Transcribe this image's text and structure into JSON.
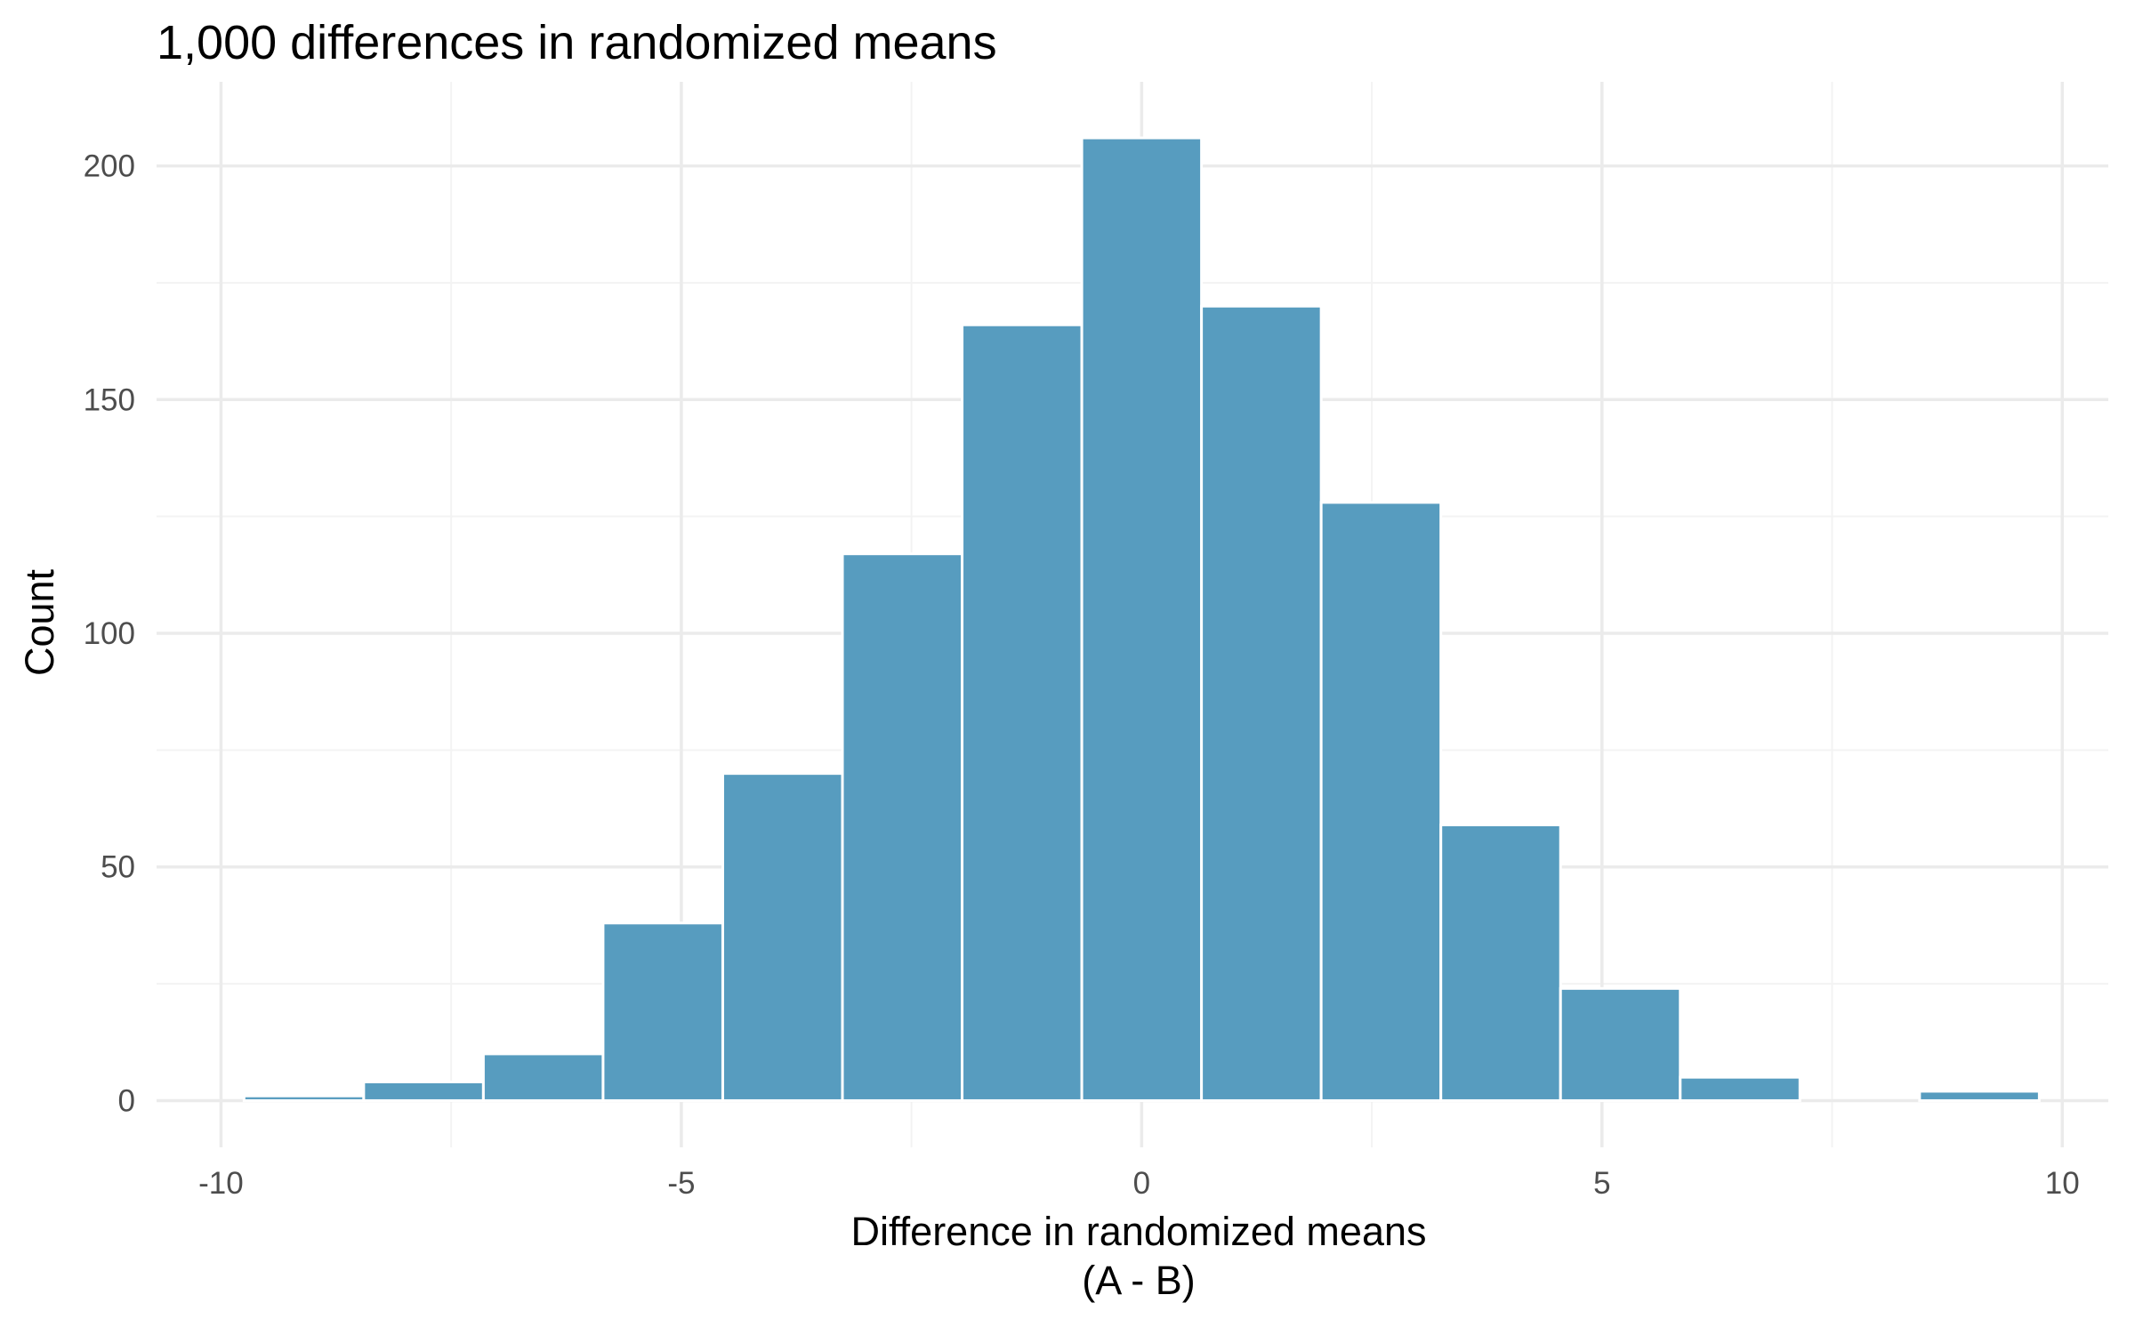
{
  "chart_data": {
    "type": "bar",
    "title": "1,000 differences in randomized means",
    "xlabel": "Difference in randomized means",
    "xlabel_line2": "(A - B)",
    "ylabel": "Count",
    "x_ticks": [
      -10,
      -5,
      0,
      5,
      10
    ],
    "x_tick_labels": [
      "-10",
      "-5",
      "0",
      "5",
      "10"
    ],
    "y_ticks": [
      0,
      50,
      100,
      150,
      200
    ],
    "y_tick_labels": [
      "0",
      "50",
      "100",
      "150",
      "200"
    ],
    "xlim": [
      -10.7,
      10.5
    ],
    "ylim": [
      -10,
      218
    ],
    "grid": true,
    "legend": "none",
    "bin_width": 1.3,
    "bins": [
      {
        "x_start": -9.75,
        "x_end": -8.45,
        "count": 1
      },
      {
        "x_start": -8.45,
        "x_end": -7.15,
        "count": 4
      },
      {
        "x_start": -7.15,
        "x_end": -5.85,
        "count": 10
      },
      {
        "x_start": -5.85,
        "x_end": -4.55,
        "count": 38
      },
      {
        "x_start": -4.55,
        "x_end": -3.25,
        "count": 70
      },
      {
        "x_start": -3.25,
        "x_end": -1.95,
        "count": 117
      },
      {
        "x_start": -1.95,
        "x_end": -0.65,
        "count": 166
      },
      {
        "x_start": -0.65,
        "x_end": 0.65,
        "count": 206
      },
      {
        "x_start": 0.65,
        "x_end": 1.95,
        "count": 170
      },
      {
        "x_start": 1.95,
        "x_end": 3.25,
        "count": 128
      },
      {
        "x_start": 3.25,
        "x_end": 4.55,
        "count": 59
      },
      {
        "x_start": 4.55,
        "x_end": 5.85,
        "count": 24
      },
      {
        "x_start": 5.85,
        "x_end": 7.15,
        "count": 5
      },
      {
        "x_start": 7.15,
        "x_end": 8.45,
        "count": 0
      },
      {
        "x_start": 8.45,
        "x_end": 9.75,
        "count": 2
      }
    ],
    "colors": {
      "bar_fill": "#579cbf",
      "bar_stroke": "#ffffff",
      "grid_major": "#ebebeb",
      "grid_minor": "#f3f3f3",
      "tick_text": "#4d4d4d",
      "title_text": "#000000"
    }
  }
}
